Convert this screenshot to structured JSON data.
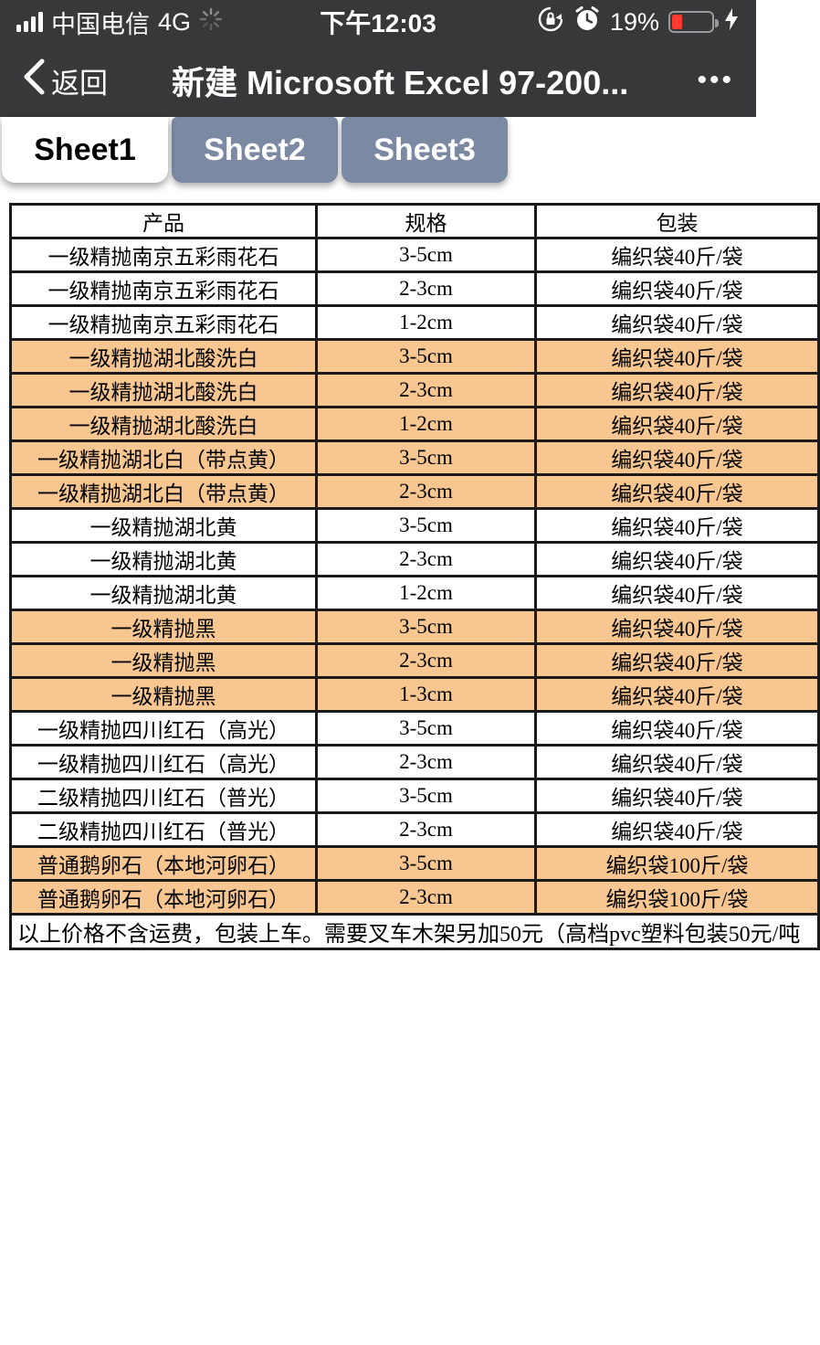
{
  "status_bar": {
    "carrier": "中国电信",
    "network": "4G",
    "time": "下午12:03",
    "battery_percent": "19%",
    "battery_color": "#ff3b30",
    "bar_background": "#38383a"
  },
  "nav_bar": {
    "back_label": "返回",
    "title": "新建 Microsoft Excel 97-200...",
    "menu_label": "•••"
  },
  "tabs": [
    {
      "label": "Sheet1",
      "active": true
    },
    {
      "label": "Sheet2",
      "active": false
    },
    {
      "label": "Sheet3",
      "active": false
    }
  ],
  "tab_colors": {
    "active_bg": "#ffffff",
    "active_text": "#000000",
    "inactive_bg": "#7b89a2",
    "inactive_text": "#ffffff"
  },
  "table": {
    "headers": [
      "产品",
      "规格",
      "包装"
    ],
    "highlight_color": "#f8c791",
    "rows": [
      {
        "product": "一级精抛南京五彩雨花石",
        "spec": "3-5cm",
        "packaging": "编织袋40斤/袋",
        "highlight": false
      },
      {
        "product": "一级精抛南京五彩雨花石",
        "spec": "2-3cm",
        "packaging": "编织袋40斤/袋",
        "highlight": false
      },
      {
        "product": "一级精抛南京五彩雨花石",
        "spec": "1-2cm",
        "packaging": "编织袋40斤/袋",
        "highlight": false
      },
      {
        "product": "一级精抛湖北酸洗白",
        "spec": "3-5cm",
        "packaging": "编织袋40斤/袋",
        "highlight": true
      },
      {
        "product": "一级精抛湖北酸洗白",
        "spec": "2-3cm",
        "packaging": "编织袋40斤/袋",
        "highlight": true
      },
      {
        "product": "一级精抛湖北酸洗白",
        "spec": "1-2cm",
        "packaging": "编织袋40斤/袋",
        "highlight": true
      },
      {
        "product": "一级精抛湖北白（带点黄）",
        "spec": "3-5cm",
        "packaging": "编织袋40斤/袋",
        "highlight": true
      },
      {
        "product": "一级精抛湖北白（带点黄）",
        "spec": "2-3cm",
        "packaging": "编织袋40斤/袋",
        "highlight": true
      },
      {
        "product": "一级精抛湖北黄",
        "spec": "3-5cm",
        "packaging": "编织袋40斤/袋",
        "highlight": false
      },
      {
        "product": "一级精抛湖北黄",
        "spec": "2-3cm",
        "packaging": "编织袋40斤/袋",
        "highlight": false
      },
      {
        "product": "一级精抛湖北黄",
        "spec": "1-2cm",
        "packaging": "编织袋40斤/袋",
        "highlight": false
      },
      {
        "product": "一级精抛黑",
        "spec": "3-5cm",
        "packaging": "编织袋40斤/袋",
        "highlight": true
      },
      {
        "product": "一级精抛黑",
        "spec": "2-3cm",
        "packaging": "编织袋40斤/袋",
        "highlight": true
      },
      {
        "product": "一级精抛黑",
        "spec": "1-3cm",
        "packaging": "编织袋40斤/袋",
        "highlight": true
      },
      {
        "product": "一级精抛四川红石（高光）",
        "spec": "3-5cm",
        "packaging": "编织袋40斤/袋",
        "highlight": false
      },
      {
        "product": "一级精抛四川红石（高光）",
        "spec": "2-3cm",
        "packaging": "编织袋40斤/袋",
        "highlight": false
      },
      {
        "product": "二级精抛四川红石（普光）",
        "spec": "3-5cm",
        "packaging": "编织袋40斤/袋",
        "highlight": false
      },
      {
        "product": "二级精抛四川红石（普光）",
        "spec": "2-3cm",
        "packaging": "编织袋40斤/袋",
        "highlight": false
      },
      {
        "product": "普通鹅卵石（本地河卵石）",
        "spec": "3-5cm",
        "packaging": "编织袋100斤/袋",
        "highlight": true
      },
      {
        "product": "普通鹅卵石（本地河卵石）",
        "spec": "2-3cm",
        "packaging": "编织袋100斤/袋",
        "highlight": true
      }
    ],
    "footer_note": "以上价格不含运费，包装上车。需要叉车木架另加50元（高档pvc塑料包装50元/吨"
  }
}
